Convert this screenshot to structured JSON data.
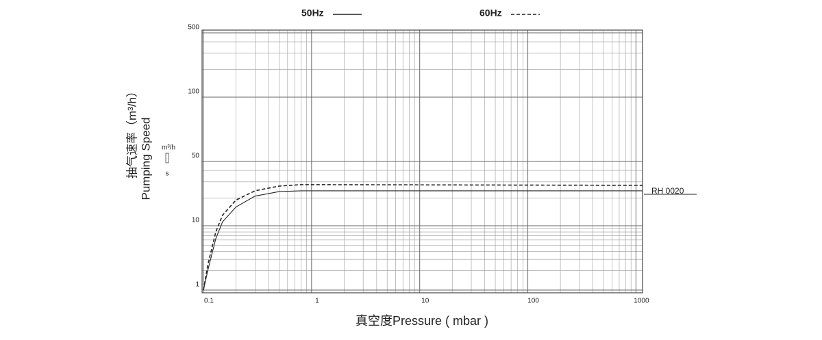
{
  "chart_data": {
    "type": "line",
    "y_label": [
      "抽气速率（m³/h）",
      "Pumping Speed"
    ],
    "y_unit": [
      "m³/h",
      "s"
    ],
    "x_label": "真空度Pressure ( mbar )",
    "annotation": "RH 0020",
    "log_x": true,
    "log_y": true,
    "grid": true,
    "xlim": [
      0.1,
      1150
    ],
    "xticks": [
      0.1,
      1,
      10,
      100,
      1000
    ],
    "ylim": [
      1,
      500
    ],
    "yticks": [
      1,
      10,
      50,
      100,
      500
    ],
    "series": [
      {
        "name": "50Hz",
        "color": "#222222",
        "dash": false,
        "x": [
          0.1,
          0.11,
          0.13,
          0.15,
          0.2,
          0.3,
          0.5,
          0.8,
          1150
        ],
        "values": [
          1,
          2.05,
          6.3,
          11,
          16,
          21,
          23.5,
          24,
          24
        ]
      },
      {
        "name": "60Hz",
        "color": "#222222",
        "dash": true,
        "x": [
          0.1,
          0.11,
          0.13,
          0.15,
          0.2,
          0.3,
          0.5,
          0.8,
          1150
        ],
        "values": [
          1,
          2.5,
          8,
          13,
          19,
          24,
          27,
          28,
          27.5
        ]
      }
    ]
  }
}
